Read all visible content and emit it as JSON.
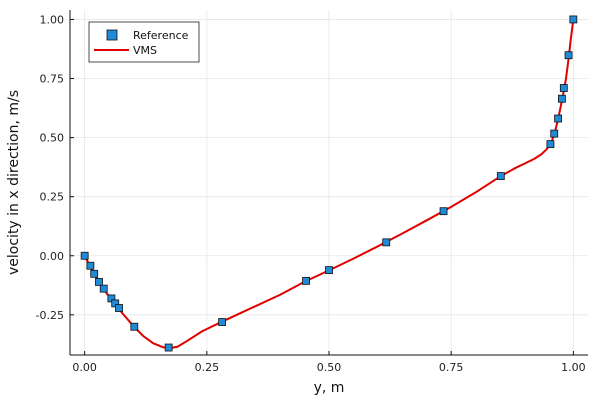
{
  "chart_data": {
    "type": "scatter",
    "xlabel": "y, m",
    "ylabel": "velocity in x direction, m/s",
    "xlim": [
      -0.03,
      1.03
    ],
    "ylim": [
      -0.42,
      1.04
    ],
    "x_ticks": [
      0.0,
      0.25,
      0.5,
      0.75,
      1.0
    ],
    "x_tick_labels": [
      "0.00",
      "0.25",
      "0.50",
      "0.75",
      "1.00"
    ],
    "y_ticks": [
      -0.25,
      0.0,
      0.25,
      0.5,
      0.75,
      1.0
    ],
    "y_tick_labels": [
      "-0.25",
      "0.00",
      "0.25",
      "0.50",
      "0.75",
      "1.00"
    ],
    "grid": true,
    "legend_position": "top-left",
    "series": [
      {
        "name": "Reference",
        "kind": "scatter",
        "marker": "square",
        "color": "#1f8ad6",
        "points": [
          [
            0.0,
            0.0
          ],
          [
            0.0117,
            -0.0423
          ],
          [
            0.0195,
            -0.0764
          ],
          [
            0.0293,
            -0.1107
          ],
          [
            0.039,
            -0.1392
          ],
          [
            0.0547,
            -0.1805
          ],
          [
            0.0625,
            -0.2015
          ],
          [
            0.0703,
            -0.2211
          ],
          [
            0.1016,
            -0.3004
          ],
          [
            0.1719,
            -0.3884
          ],
          [
            0.2813,
            -0.2805
          ],
          [
            0.4531,
            -0.1062
          ],
          [
            0.5,
            -0.0608
          ],
          [
            0.6172,
            0.0568
          ],
          [
            0.7344,
            0.1886
          ],
          [
            0.8516,
            0.3372
          ],
          [
            0.9531,
            0.4723
          ],
          [
            0.9609,
            0.5169
          ],
          [
            0.9688,
            0.5808
          ],
          [
            0.9766,
            0.6644
          ],
          [
            0.9805,
            0.7099
          ],
          [
            0.9902,
            0.8486
          ],
          [
            1.0,
            1.0
          ]
        ]
      },
      {
        "name": "VMS",
        "kind": "line",
        "color": "#e00000",
        "points": [
          [
            0.0,
            0.0
          ],
          [
            0.02,
            -0.08
          ],
          [
            0.04,
            -0.145
          ],
          [
            0.06,
            -0.2
          ],
          [
            0.08,
            -0.25
          ],
          [
            0.1,
            -0.298
          ],
          [
            0.12,
            -0.34
          ],
          [
            0.14,
            -0.37
          ],
          [
            0.16,
            -0.387
          ],
          [
            0.175,
            -0.391
          ],
          [
            0.19,
            -0.385
          ],
          [
            0.21,
            -0.36
          ],
          [
            0.24,
            -0.32
          ],
          [
            0.28,
            -0.28
          ],
          [
            0.33,
            -0.232
          ],
          [
            0.4,
            -0.165
          ],
          [
            0.45,
            -0.11
          ],
          [
            0.5,
            -0.062
          ],
          [
            0.55,
            -0.012
          ],
          [
            0.6,
            0.04
          ],
          [
            0.65,
            0.094
          ],
          [
            0.7,
            0.15
          ],
          [
            0.75,
            0.207
          ],
          [
            0.8,
            0.268
          ],
          [
            0.85,
            0.335
          ],
          [
            0.88,
            0.37
          ],
          [
            0.9,
            0.39
          ],
          [
            0.92,
            0.41
          ],
          [
            0.935,
            0.43
          ],
          [
            0.945,
            0.45
          ],
          [
            0.955,
            0.48
          ],
          [
            0.962,
            0.52
          ],
          [
            0.97,
            0.59
          ],
          [
            0.978,
            0.67
          ],
          [
            0.985,
            0.75
          ],
          [
            0.99,
            0.83
          ],
          [
            0.995,
            0.92
          ],
          [
            1.0,
            1.0
          ]
        ]
      }
    ]
  }
}
